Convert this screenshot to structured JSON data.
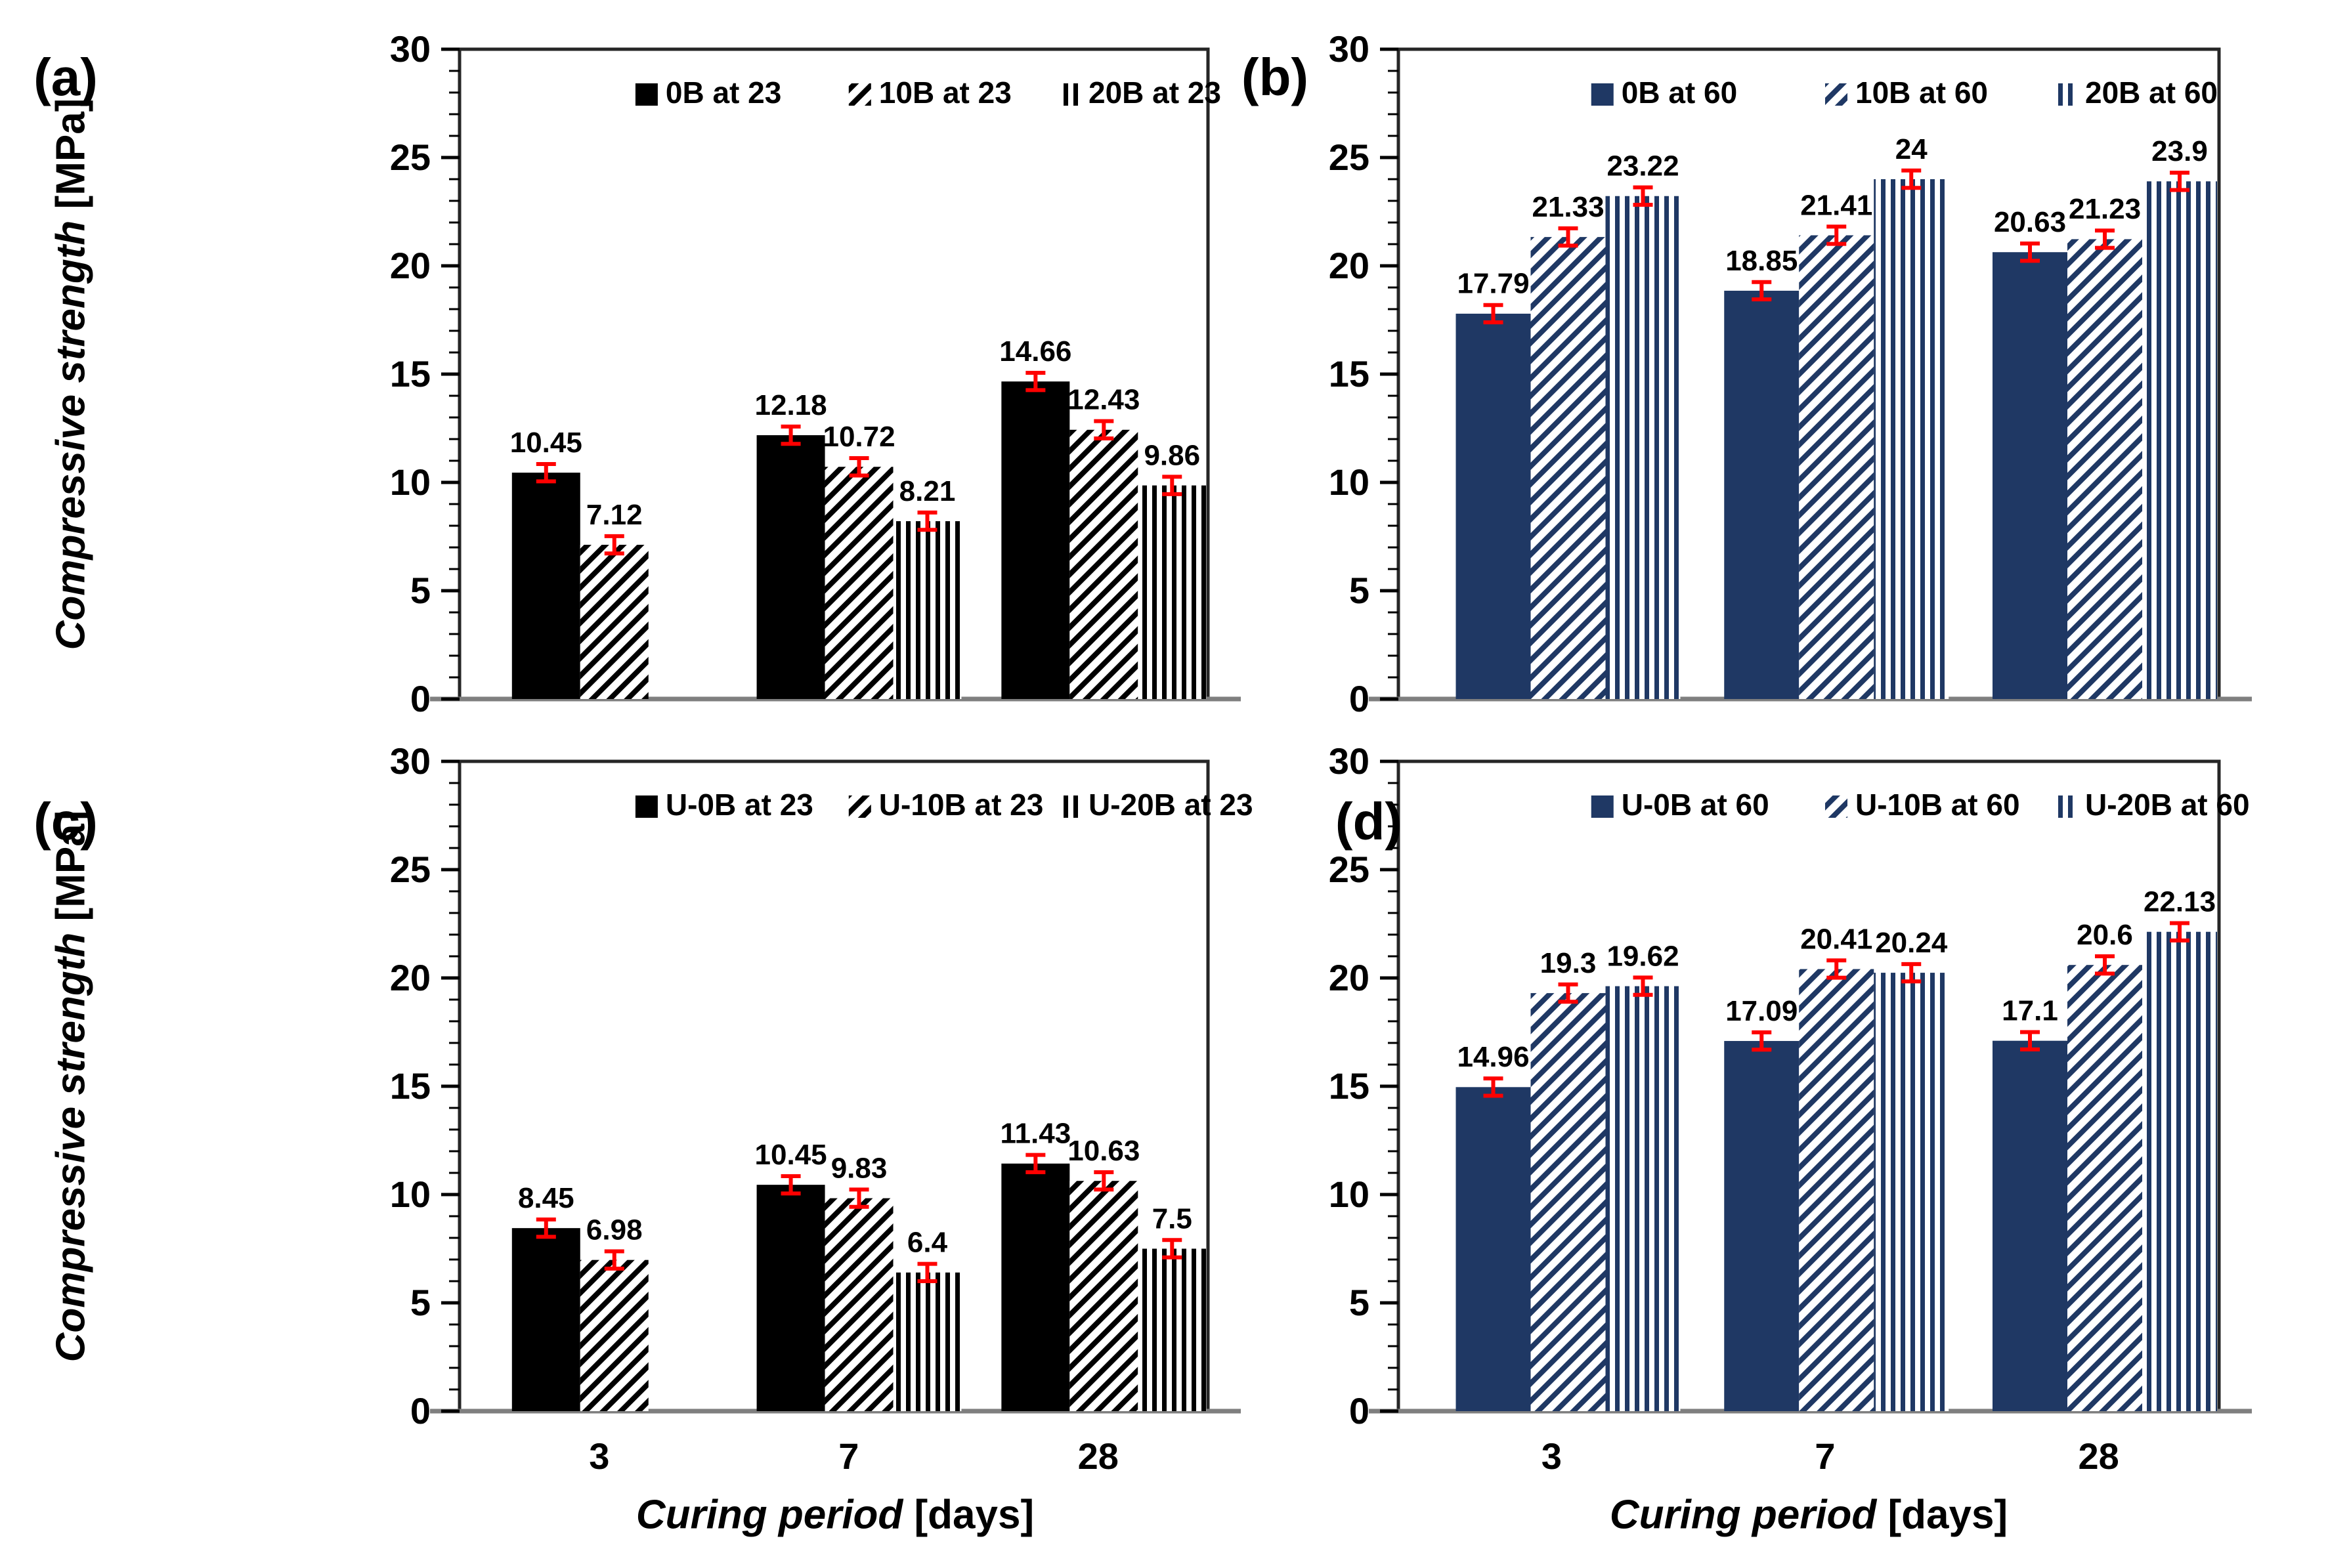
{
  "figure": {
    "background": "#ffffff",
    "border_color": "#262626",
    "baseline_color": "#7f7f7f",
    "error_bar_color": "#ff0000",
    "ylabel": {
      "main": "Compressive strength",
      "unit": "[MPa]"
    },
    "xlabel": {
      "main": "Curing period",
      "unit": "[days]"
    },
    "y_ticks": [
      0,
      5,
      10,
      15,
      20,
      25,
      30
    ]
  },
  "chart_data": [
    {
      "type": "bar",
      "panel_label": "(a)",
      "color": "#000000",
      "categories": [
        "3",
        "7",
        "28"
      ],
      "ylim": [
        0,
        30
      ],
      "y_major": 5,
      "y_minor": 1,
      "error": 0.4,
      "legend_position": "top-inside",
      "grid": false,
      "series": [
        {
          "name": "0B at 23",
          "pattern": "solid",
          "values": [
            10.45,
            12.18,
            14.66
          ],
          "labels": [
            "10.45",
            "12.18",
            "14.66"
          ]
        },
        {
          "name": "10B at 23",
          "pattern": "diagonal",
          "values": [
            7.12,
            10.72,
            12.43
          ],
          "labels": [
            "7.12",
            "10.72",
            "12.43"
          ]
        },
        {
          "name": "20B at 23",
          "pattern": "vertical",
          "values": [
            null,
            8.21,
            9.86
          ],
          "labels": [
            "",
            "8.21",
            "9.86"
          ]
        }
      ]
    },
    {
      "type": "bar",
      "panel_label": "(b)",
      "color": "#1F3864",
      "categories": [
        "3",
        "7",
        "28"
      ],
      "ylim": [
        0,
        30
      ],
      "y_major": 5,
      "y_minor": 1,
      "error": 0.4,
      "legend_position": "top-inside",
      "grid": false,
      "series": [
        {
          "name": "0B at 60",
          "pattern": "solid",
          "values": [
            17.79,
            18.85,
            20.63
          ],
          "labels": [
            "17.79",
            "18.85",
            "20.63"
          ]
        },
        {
          "name": "10B at 60",
          "pattern": "diagonal",
          "values": [
            21.33,
            21.41,
            21.23
          ],
          "labels": [
            "21.33",
            "21.41",
            "21.23"
          ]
        },
        {
          "name": "20B at 60",
          "pattern": "vertical",
          "values": [
            23.22,
            24,
            23.9
          ],
          "labels": [
            "23.22",
            "24",
            "23.9"
          ]
        }
      ]
    },
    {
      "type": "bar",
      "panel_label": "(c)",
      "color": "#000000",
      "categories": [
        "3",
        "7",
        "28"
      ],
      "ylim": [
        0,
        30
      ],
      "y_major": 5,
      "y_minor": 1,
      "error": 0.4,
      "legend_position": "top-inside",
      "grid": false,
      "series": [
        {
          "name": "U-0B at 23",
          "pattern": "solid",
          "values": [
            8.45,
            10.45,
            11.43
          ],
          "labels": [
            "8.45",
            "10.45",
            "11.43"
          ]
        },
        {
          "name": "U-10B at 23",
          "pattern": "diagonal",
          "values": [
            6.98,
            9.83,
            10.63
          ],
          "labels": [
            "6.98",
            "9.83",
            "10.63"
          ]
        },
        {
          "name": "U-20B at 23",
          "pattern": "vertical",
          "values": [
            null,
            6.4,
            7.5
          ],
          "labels": [
            "",
            "6.4",
            "7.5"
          ]
        }
      ]
    },
    {
      "type": "bar",
      "panel_label": "(d)",
      "color": "#1F3864",
      "categories": [
        "3",
        "7",
        "28"
      ],
      "ylim": [
        0,
        30
      ],
      "y_major": 5,
      "y_minor": 1,
      "error": 0.4,
      "legend_position": "top-inside",
      "grid": false,
      "series": [
        {
          "name": "U-0B at 60",
          "pattern": "solid",
          "values": [
            14.96,
            17.09,
            17.1
          ],
          "labels": [
            "14.96",
            "17.09",
            "17.1"
          ]
        },
        {
          "name": "U-10B at 60",
          "pattern": "diagonal",
          "values": [
            19.3,
            20.41,
            20.6
          ],
          "labels": [
            "19.3",
            "20.41",
            "20.6"
          ]
        },
        {
          "name": "U-20B at 60",
          "pattern": "vertical",
          "values": [
            19.62,
            20.24,
            22.13
          ],
          "labels": [
            "19.62",
            "20.24",
            "22.13"
          ]
        }
      ]
    }
  ]
}
